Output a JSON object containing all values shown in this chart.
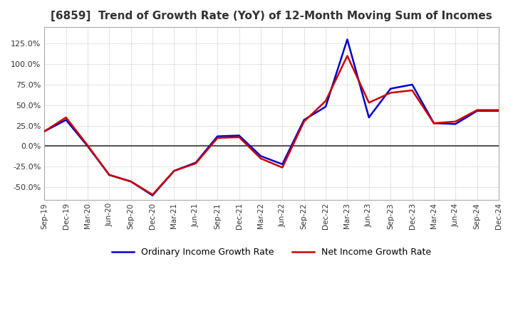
{
  "title": "[6859]  Trend of Growth Rate (YoY) of 12-Month Moving Sum of Incomes",
  "title_fontsize": 11,
  "ylim": [
    -65,
    145
  ],
  "yticks": [
    -50,
    -25,
    0,
    25,
    50,
    75,
    100,
    125
  ],
  "ytick_labels": [
    "-50.0%",
    "-25.0%",
    "0.0%",
    "25.0%",
    "50.0%",
    "75.0%",
    "100.0%",
    "125.0%"
  ],
  "x_labels": [
    "Sep-19",
    "Dec-19",
    "Mar-20",
    "Jun-20",
    "Sep-20",
    "Dec-20",
    "Mar-21",
    "Jun-21",
    "Sep-21",
    "Dec-21",
    "Mar-22",
    "Jun-22",
    "Sep-22",
    "Dec-22",
    "Mar-23",
    "Jun-23",
    "Sep-23",
    "Dec-23",
    "Mar-24",
    "Jun-24",
    "Sep-24",
    "Dec-24"
  ],
  "ordinary_income": [
    18,
    32,
    0,
    -35,
    -43,
    -60,
    -30,
    -20,
    12,
    13,
    -12,
    -22,
    32,
    48,
    130,
    35,
    70,
    75,
    28,
    27,
    43,
    43
  ],
  "net_income": [
    18,
    35,
    1,
    -35,
    -43,
    -59,
    -30,
    -21,
    10,
    11,
    -15,
    -26,
    30,
    55,
    110,
    53,
    65,
    68,
    28,
    30,
    44,
    44
  ],
  "ordinary_color": "#0000cc",
  "net_color": "#cc0000",
  "line_width": 1.8,
  "background_color": "#ffffff",
  "grid_color": "#aaaaaa",
  "zero_line_color": "#333333",
  "legend_ordinary": "Ordinary Income Growth Rate",
  "legend_net": "Net Income Growth Rate"
}
